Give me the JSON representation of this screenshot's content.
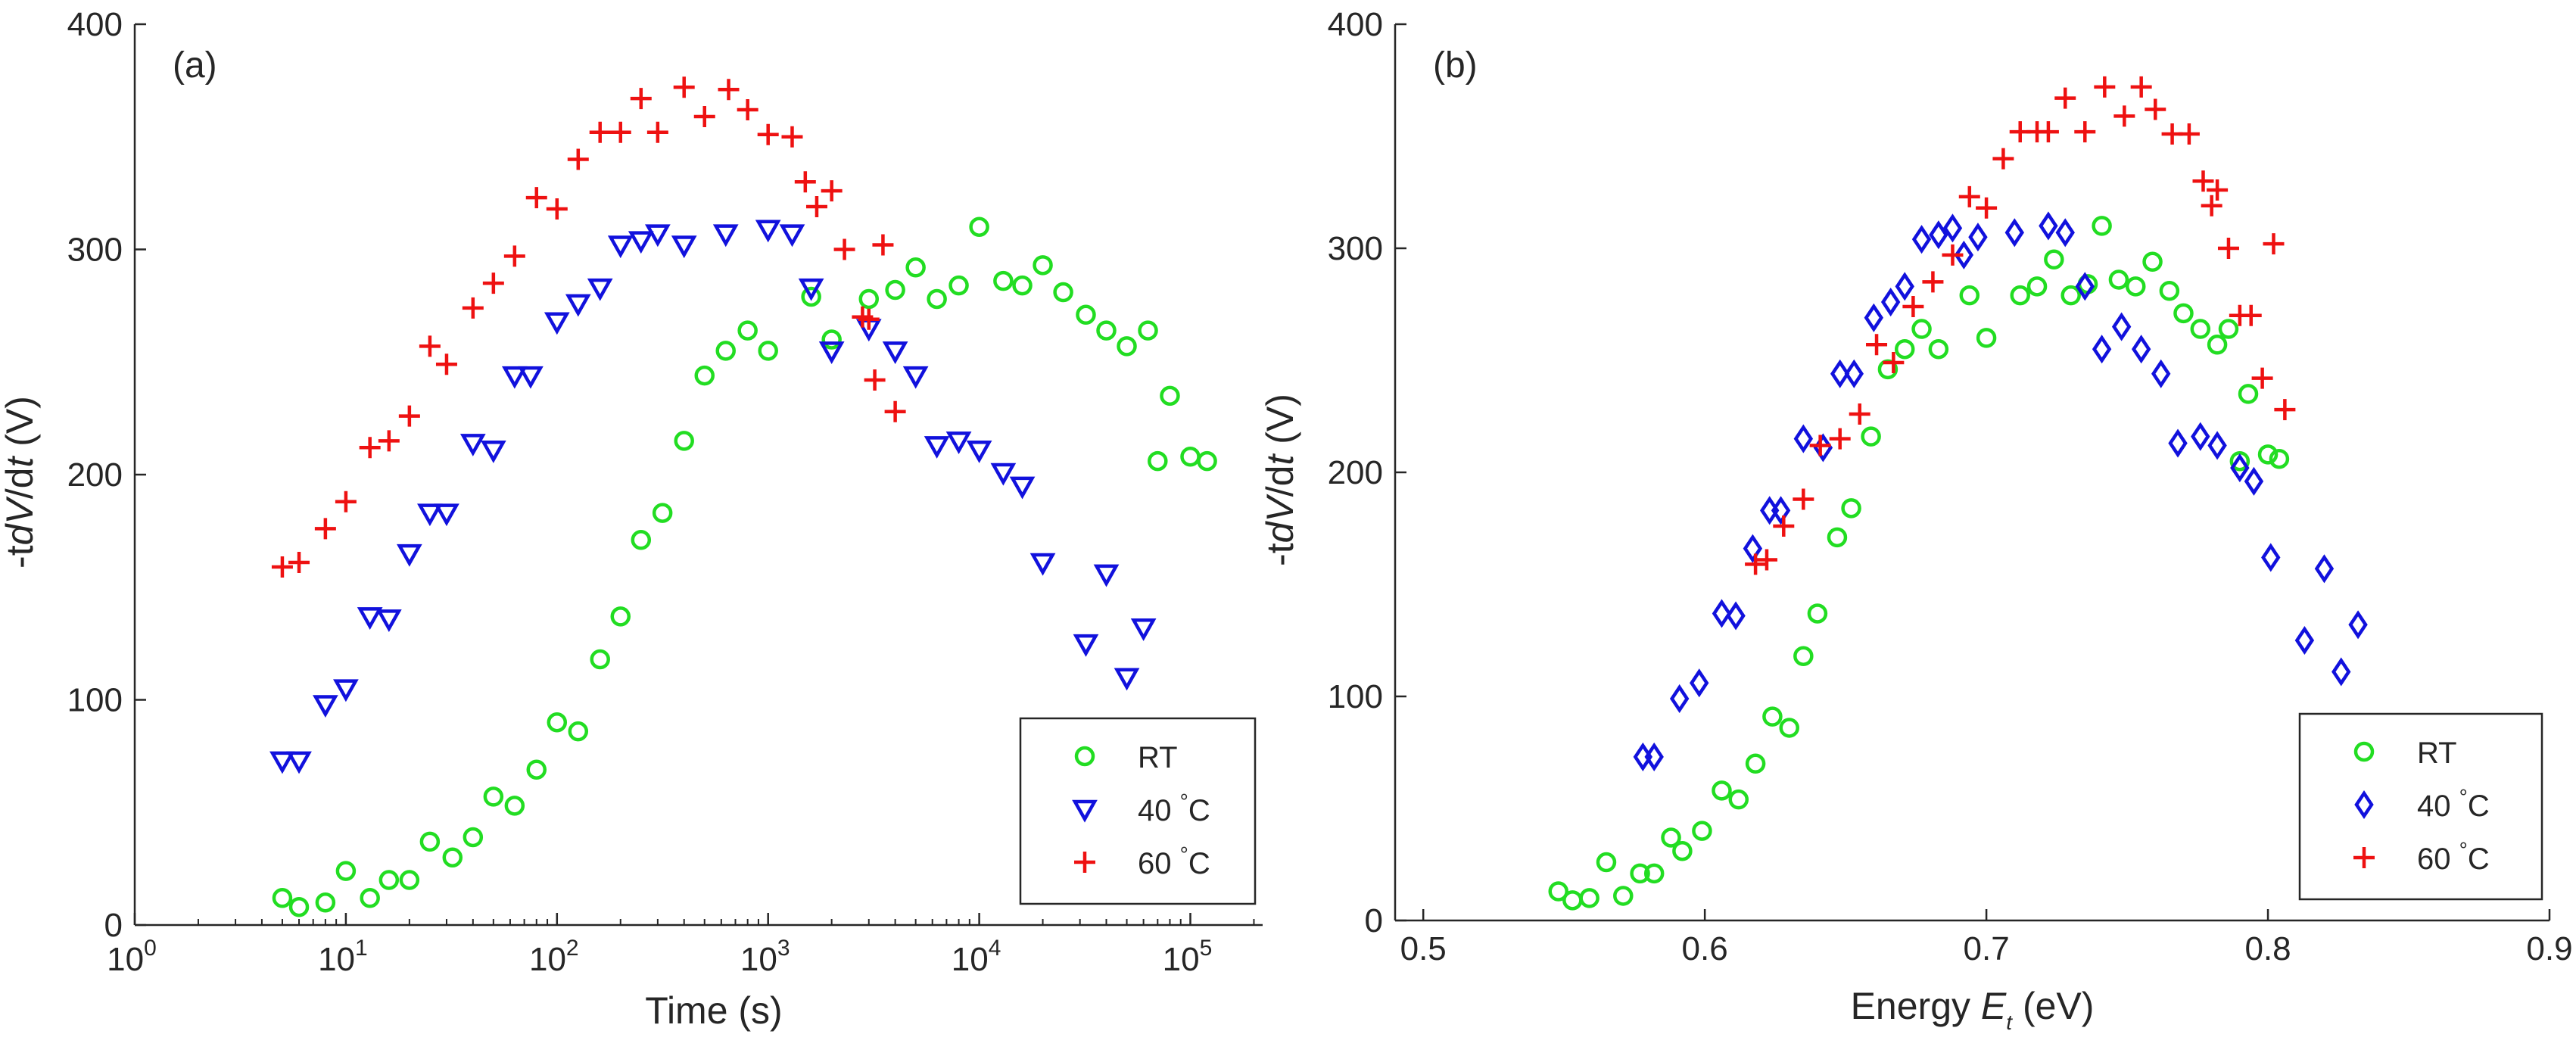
{
  "chart_data": [
    {
      "panel_label": "(a)",
      "type": "scatter",
      "xscale": "log",
      "xlabel": "Time (s)",
      "ylabel_parts": [
        "-t",
        "d",
        "V",
        "/d",
        "t",
        " (V)"
      ],
      "xlim": [
        1,
        220000
      ],
      "ylim": [
        0,
        400
      ],
      "x_ticks": [
        {
          "value": 1,
          "base": "10",
          "exp": "0"
        },
        {
          "value": 10,
          "base": "10",
          "exp": "1"
        },
        {
          "value": 100,
          "base": "10",
          "exp": "2"
        },
        {
          "value": 1000,
          "base": "10",
          "exp": "3"
        },
        {
          "value": 10000,
          "base": "10",
          "exp": "4"
        },
        {
          "value": 100000,
          "base": "10",
          "exp": "5"
        }
      ],
      "y_ticks": [
        {
          "value": 0,
          "label": "0"
        },
        {
          "value": 100,
          "label": "100"
        },
        {
          "value": 200,
          "label": "200"
        },
        {
          "value": 300,
          "label": "300"
        },
        {
          "value": 400,
          "label": "400"
        }
      ],
      "legend": {
        "position": "bottom-right"
      },
      "series": [
        {
          "name": "RT",
          "unit": "",
          "marker": "circle",
          "color": "#22dd22",
          "x": [
            5,
            6,
            8,
            10,
            13,
            16,
            20,
            25,
            32,
            40,
            50,
            63,
            80,
            100,
            126,
            160,
            200,
            250,
            316,
            400,
            500,
            630,
            800,
            1000,
            1600,
            2000,
            3000,
            4000,
            5000,
            6300,
            8000,
            10000,
            13000,
            16000,
            20000,
            25000,
            32000,
            40000,
            50000,
            63000,
            80000,
            100000,
            120000,
            70000
          ],
          "y": [
            12,
            8,
            10,
            24,
            12,
            20,
            20,
            37,
            30,
            39,
            57,
            53,
            69,
            90,
            86,
            118,
            137,
            171,
            183,
            215,
            244,
            255,
            264,
            255,
            279,
            260,
            278,
            282,
            292,
            278,
            284,
            310,
            286,
            284,
            293,
            281,
            271,
            264,
            257,
            264,
            235,
            208,
            206,
            206
          ]
        },
        {
          "name": "40",
          "unit": "°C",
          "marker": "triangle-down",
          "color": "#1111dd",
          "x": [
            5,
            6,
            8,
            10,
            13,
            16,
            20,
            25,
            30,
            40,
            50,
            63,
            75,
            100,
            126,
            160,
            200,
            250,
            300,
            400,
            630,
            1000,
            1300,
            1600,
            2000,
            3000,
            4000,
            5000,
            6300,
            8000,
            10000,
            13000,
            16000,
            20000,
            32000,
            40000,
            50000,
            60000
          ],
          "y": [
            73,
            73,
            98,
            105,
            137,
            136,
            165,
            183,
            183,
            214,
            211,
            244,
            244,
            268,
            276,
            283,
            302,
            304,
            307,
            302,
            307,
            309,
            307,
            283,
            255,
            265,
            255,
            244,
            213,
            215,
            211,
            201,
            195,
            161,
            125,
            156,
            110,
            132
          ]
        },
        {
          "name": "60",
          "unit": "°C",
          "marker": "plus",
          "color": "#ee1111",
          "x": [
            5,
            6,
            8,
            10,
            13,
            16,
            20,
            25,
            30,
            40,
            50,
            63,
            80,
            100,
            126,
            160,
            200,
            250,
            300,
            400,
            500,
            650,
            800,
            1000,
            1300,
            1500,
            1700,
            2000,
            2300,
            2800,
            3200,
            3500,
            4000,
            3000
          ],
          "y": [
            159,
            161,
            176,
            188,
            212,
            215,
            226,
            257,
            249,
            274,
            285,
            297,
            323,
            318,
            340,
            352,
            352,
            367,
            352,
            372,
            359,
            371,
            362,
            351,
            350,
            330,
            319,
            326,
            300,
            270,
            242,
            302,
            228,
            269
          ]
        }
      ]
    },
    {
      "panel_label": "(b)",
      "type": "scatter",
      "xscale": "linear",
      "xlabel_parts": [
        "Energy ",
        "E",
        "t",
        " (eV)"
      ],
      "ylabel_parts": [
        "-t",
        "d",
        "V",
        "/d",
        "t",
        " (V)"
      ],
      "xlim": [
        0.49,
        0.9
      ],
      "ylim": [
        0,
        400
      ],
      "x_ticks": [
        {
          "value": 0.5,
          "label": "0.5"
        },
        {
          "value": 0.6,
          "label": "0.6"
        },
        {
          "value": 0.7,
          "label": "0.7"
        },
        {
          "value": 0.8,
          "label": "0.8"
        },
        {
          "value": 0.9,
          "label": "0.9"
        }
      ],
      "y_ticks": [
        {
          "value": 0,
          "label": "0"
        },
        {
          "value": 100,
          "label": "100"
        },
        {
          "value": 200,
          "label": "200"
        },
        {
          "value": 300,
          "label": "300"
        },
        {
          "value": 400,
          "label": "400"
        }
      ],
      "legend": {
        "position": "bottom-right"
      },
      "series": [
        {
          "name": "RT",
          "unit": "",
          "marker": "circle",
          "color": "#22dd22",
          "x": [
            0.548,
            0.553,
            0.559,
            0.565,
            0.571,
            0.577,
            0.582,
            0.588,
            0.592,
            0.599,
            0.606,
            0.612,
            0.618,
            0.624,
            0.63,
            0.635,
            0.64,
            0.647,
            0.652,
            0.659,
            0.665,
            0.671,
            0.677,
            0.683,
            0.694,
            0.7,
            0.712,
            0.718,
            0.724,
            0.73,
            0.736,
            0.741,
            0.747,
            0.753,
            0.759,
            0.765,
            0.77,
            0.776,
            0.782,
            0.786,
            0.79,
            0.793,
            0.8,
            0.804
          ],
          "y": [
            13,
            9,
            10,
            26,
            11,
            21,
            21,
            37,
            31,
            40,
            58,
            54,
            70,
            91,
            86,
            118,
            137,
            171,
            184,
            216,
            246,
            255,
            264,
            255,
            279,
            260,
            279,
            283,
            295,
            279,
            284,
            310,
            286,
            283,
            294,
            281,
            271,
            264,
            257,
            264,
            205,
            235,
            208,
            206
          ]
        },
        {
          "name": "40",
          "unit": "°C",
          "marker": "diamond",
          "color": "#1111dd",
          "x": [
            0.578,
            0.582,
            0.591,
            0.598,
            0.606,
            0.611,
            0.617,
            0.623,
            0.627,
            0.635,
            0.642,
            0.648,
            0.653,
            0.66,
            0.666,
            0.671,
            0.677,
            0.683,
            0.688,
            0.692,
            0.697,
            0.71,
            0.722,
            0.728,
            0.735,
            0.741,
            0.748,
            0.755,
            0.762,
            0.768,
            0.776,
            0.782,
            0.79,
            0.795,
            0.801,
            0.813,
            0.82,
            0.826,
            0.832
          ],
          "y": [
            73,
            73,
            99,
            106,
            137,
            136,
            166,
            183,
            183,
            215,
            211,
            244,
            244,
            269,
            276,
            283,
            304,
            306,
            309,
            297,
            305,
            307,
            310,
            307,
            283,
            255,
            265,
            255,
            244,
            213,
            216,
            212,
            202,
            196,
            162,
            125,
            157,
            111,
            132
          ]
        },
        {
          "name": "60",
          "unit": "°C",
          "marker": "plus",
          "color": "#ee1111",
          "x": [
            0.618,
            0.622,
            0.628,
            0.635,
            0.641,
            0.648,
            0.655,
            0.661,
            0.667,
            0.674,
            0.681,
            0.688,
            0.694,
            0.7,
            0.706,
            0.712,
            0.718,
            0.722,
            0.728,
            0.735,
            0.742,
            0.749,
            0.755,
            0.76,
            0.766,
            0.772,
            0.777,
            0.78,
            0.782,
            0.786,
            0.79,
            0.794,
            0.798,
            0.802,
            0.806
          ],
          "y": [
            159,
            161,
            176,
            188,
            212,
            215,
            226,
            257,
            249,
            274,
            285,
            297,
            323,
            318,
            340,
            352,
            352,
            352,
            367,
            352,
            372,
            359,
            372,
            362,
            351,
            351,
            330,
            319,
            326,
            300,
            270,
            270,
            242,
            302,
            228
          ]
        }
      ]
    }
  ]
}
